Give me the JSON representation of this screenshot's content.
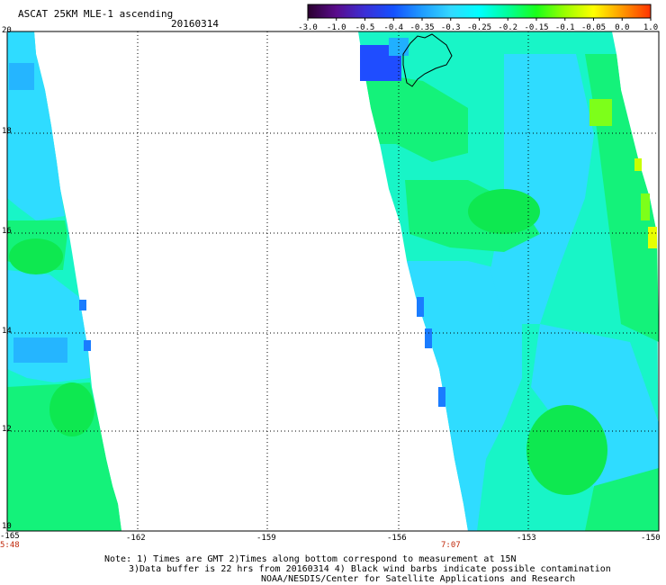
{
  "header": {
    "title": "ASCAT 25KM MLE-1 ascending",
    "date": "20160314"
  },
  "colorbar": {
    "ticks": [
      "-3.0",
      "-1.0",
      "-0.5",
      "-0.4",
      "-0.35",
      "-0.3",
      "-0.25",
      "-0.2",
      "-0.15",
      "-0.1",
      "-0.05",
      "0.0",
      "1.0"
    ],
    "colors": [
      "#2a002f",
      "#5a0c8c",
      "#3b2fd6",
      "#1451ff",
      "#1f9cff",
      "#33d8ff",
      "#00ffff",
      "#00ff9a",
      "#1aff1a",
      "#9bff00",
      "#ffff00",
      "#ff9900",
      "#ff3300"
    ]
  },
  "axes": {
    "lat_labels": [
      "20",
      "18",
      "16",
      "14",
      "12",
      "10"
    ],
    "lon_labels": [
      "-165",
      "-162",
      "-159",
      "-156",
      "-153",
      "-150"
    ],
    "time_labels": [
      "5:48",
      "7:07"
    ]
  },
  "footer": {
    "line1": "Note: 1) Times are GMT 2)Times along bottom correspond to measurement at 15N",
    "line2": "3)Data buffer is 22 hrs from 20160314 4) Black wind barbs indicate possible contamination",
    "line3": "NOAA/NESDIS/Center for Satellite Applications and Research"
  }
}
